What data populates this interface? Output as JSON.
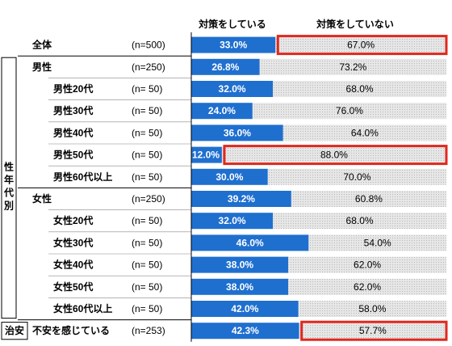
{
  "legend": {
    "yes": "対策をしている",
    "no": "対策をしていない"
  },
  "groups": {
    "gender_age": "性年代別",
    "worry": "治安"
  },
  "colors": {
    "yes": "#1f6fcf",
    "no_fill": "#e3e3e3",
    "highlight": "#e0281e",
    "axis": "#000000"
  },
  "chart_data": {
    "type": "bar",
    "stacked": true,
    "orientation": "horizontal",
    "xlim": [
      0,
      100
    ],
    "unit": "%",
    "series": [
      {
        "name": "対策をしている",
        "values": [
          33.0,
          26.8,
          32.0,
          24.0,
          36.0,
          12.0,
          30.0,
          39.2,
          32.0,
          46.0,
          38.0,
          38.0,
          42.0,
          42.3
        ]
      },
      {
        "name": "対策をしていない",
        "values": [
          67.0,
          73.2,
          68.0,
          76.0,
          64.0,
          88.0,
          70.0,
          60.8,
          68.0,
          54.0,
          62.0,
          62.0,
          58.0,
          57.7
        ]
      }
    ],
    "categories": [
      "全体",
      "男性",
      "男性20代",
      "男性30代",
      "男性40代",
      "男性50代",
      "男性60代以上",
      "女性",
      "女性20代",
      "女性30代",
      "女性40代",
      "女性50代",
      "女性60代以上",
      "不安を感じている"
    ],
    "rows": [
      {
        "label": "全体",
        "n": "(n=500)",
        "yes": 33.0,
        "no": 67.0,
        "yes_text": "33.0%",
        "no_text": "67.0%",
        "indent": 0,
        "highlight": "no"
      },
      {
        "label": "男性",
        "n": "(n=250)",
        "yes": 26.8,
        "no": 73.2,
        "yes_text": "26.8%",
        "no_text": "73.2%",
        "indent": 0,
        "highlight": ""
      },
      {
        "label": "男性20代",
        "n": "(n=  50)",
        "yes": 32.0,
        "no": 68.0,
        "yes_text": "32.0%",
        "no_text": "68.0%",
        "indent": 1,
        "highlight": ""
      },
      {
        "label": "男性30代",
        "n": "(n=  50)",
        "yes": 24.0,
        "no": 76.0,
        "yes_text": "24.0%",
        "no_text": "76.0%",
        "indent": 1,
        "highlight": ""
      },
      {
        "label": "男性40代",
        "n": "(n=  50)",
        "yes": 36.0,
        "no": 64.0,
        "yes_text": "36.0%",
        "no_text": "64.0%",
        "indent": 1,
        "highlight": ""
      },
      {
        "label": "男性50代",
        "n": "(n=  50)",
        "yes": 12.0,
        "no": 88.0,
        "yes_text": "12.0%",
        "no_text": "88.0%",
        "indent": 1,
        "highlight": "no"
      },
      {
        "label": "男性60代以上",
        "n": "(n=  50)",
        "yes": 30.0,
        "no": 70.0,
        "yes_text": "30.0%",
        "no_text": "70.0%",
        "indent": 1,
        "highlight": ""
      },
      {
        "label": "女性",
        "n": "(n=250)",
        "yes": 39.2,
        "no": 60.8,
        "yes_text": "39.2%",
        "no_text": "60.8%",
        "indent": 0,
        "highlight": ""
      },
      {
        "label": "女性20代",
        "n": "(n=  50)",
        "yes": 32.0,
        "no": 68.0,
        "yes_text": "32.0%",
        "no_text": "68.0%",
        "indent": 1,
        "highlight": ""
      },
      {
        "label": "女性30代",
        "n": "(n=  50)",
        "yes": 46.0,
        "no": 54.0,
        "yes_text": "46.0%",
        "no_text": "54.0%",
        "indent": 1,
        "highlight": ""
      },
      {
        "label": "女性40代",
        "n": "(n=  50)",
        "yes": 38.0,
        "no": 62.0,
        "yes_text": "38.0%",
        "no_text": "62.0%",
        "indent": 1,
        "highlight": ""
      },
      {
        "label": "女性50代",
        "n": "(n=  50)",
        "yes": 38.0,
        "no": 62.0,
        "yes_text": "38.0%",
        "no_text": "62.0%",
        "indent": 1,
        "highlight": ""
      },
      {
        "label": "女性60代以上",
        "n": "(n=  50)",
        "yes": 42.0,
        "no": 58.0,
        "yes_text": "42.0%",
        "no_text": "58.0%",
        "indent": 1,
        "highlight": ""
      },
      {
        "label": "不安を感じている",
        "n": "(n=253)",
        "yes": 42.3,
        "no": 57.7,
        "yes_text": "42.3%",
        "no_text": "57.7%",
        "indent": 0,
        "highlight": "no"
      }
    ]
  }
}
